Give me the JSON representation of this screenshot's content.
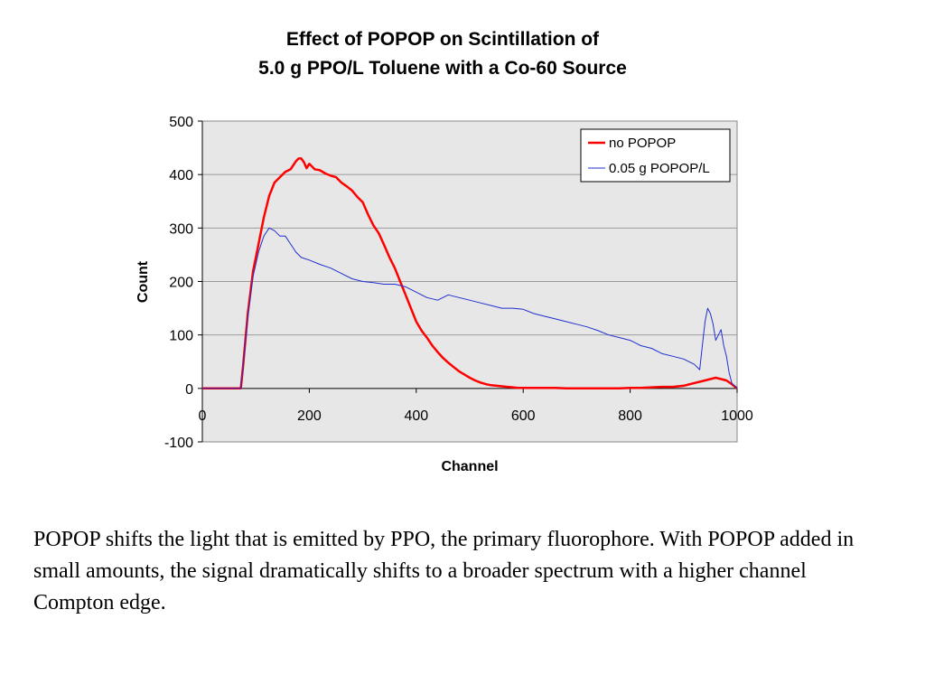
{
  "chart_data": {
    "type": "line",
    "title_lines": [
      "Effect of POPOP on Scintillation of",
      "5.0 g PPO/L Toluene with a Co-60 Source"
    ],
    "xlabel": "Channel",
    "ylabel": "Count",
    "xlim": [
      0,
      1000
    ],
    "ylim": [
      -100,
      500
    ],
    "xticks": [
      0,
      200,
      400,
      600,
      800,
      1000
    ],
    "yticks": [
      -100,
      0,
      100,
      200,
      300,
      400,
      500
    ],
    "grid": true,
    "legend_position": "top-right",
    "series": [
      {
        "name": "no POPOP",
        "color": "#ff0000",
        "x": [
          0,
          20,
          40,
          60,
          72,
          76,
          85,
          95,
          105,
          115,
          125,
          135,
          145,
          155,
          165,
          175,
          180,
          185,
          190,
          195,
          200,
          205,
          210,
          220,
          230,
          240,
          250,
          260,
          270,
          280,
          290,
          300,
          310,
          320,
          330,
          340,
          350,
          360,
          370,
          380,
          390,
          400,
          410,
          420,
          430,
          440,
          450,
          460,
          470,
          480,
          490,
          500,
          510,
          520,
          530,
          540,
          550,
          560,
          570,
          580,
          590,
          600,
          620,
          640,
          660,
          680,
          700,
          720,
          740,
          760,
          780,
          800,
          820,
          840,
          860,
          880,
          900,
          920,
          940,
          960,
          980,
          990,
          1000
        ],
        "y": [
          0,
          0,
          0,
          0,
          0,
          40,
          140,
          220,
          270,
          320,
          360,
          385,
          395,
          405,
          410,
          425,
          430,
          430,
          423,
          412,
          420,
          415,
          410,
          408,
          402,
          398,
          395,
          385,
          378,
          370,
          358,
          348,
          325,
          305,
          290,
          268,
          245,
          225,
          200,
          175,
          150,
          125,
          108,
          95,
          80,
          68,
          57,
          48,
          40,
          32,
          26,
          20,
          15,
          11,
          8,
          6,
          5,
          4,
          3,
          2,
          1,
          1,
          1,
          1,
          1,
          0,
          0,
          0,
          0,
          0,
          0,
          1,
          1,
          2,
          3,
          3,
          5,
          10,
          15,
          20,
          15,
          8,
          0
        ]
      },
      {
        "name": "0.05 g POPOP/L",
        "color": "#1f2fd1",
        "x": [
          0,
          20,
          40,
          60,
          72,
          76,
          85,
          95,
          105,
          115,
          125,
          135,
          145,
          155,
          165,
          175,
          185,
          200,
          220,
          240,
          260,
          280,
          300,
          320,
          340,
          360,
          380,
          400,
          420,
          440,
          460,
          480,
          500,
          520,
          540,
          560,
          580,
          600,
          620,
          640,
          660,
          680,
          700,
          720,
          740,
          760,
          780,
          800,
          820,
          840,
          860,
          880,
          900,
          920,
          930,
          935,
          940,
          945,
          950,
          955,
          960,
          965,
          970,
          975,
          980,
          985,
          990,
          1000
        ],
        "y": [
          0,
          0,
          0,
          0,
          0,
          40,
          135,
          210,
          255,
          285,
          300,
          295,
          285,
          285,
          270,
          255,
          245,
          240,
          232,
          225,
          215,
          205,
          200,
          198,
          195,
          195,
          190,
          180,
          170,
          165,
          175,
          170,
          165,
          160,
          155,
          150,
          150,
          148,
          140,
          135,
          130,
          125,
          120,
          115,
          108,
          100,
          95,
          90,
          80,
          75,
          65,
          60,
          55,
          45,
          35,
          80,
          125,
          150,
          140,
          120,
          90,
          100,
          110,
          80,
          60,
          30,
          10,
          0
        ]
      }
    ]
  },
  "caption": "POPOP shifts the light that is emitted by PPO, the primary fluorophore.  With POPOP added in small amounts, the signal dramatically shifts to a broader spectrum with a higher channel Compton edge."
}
